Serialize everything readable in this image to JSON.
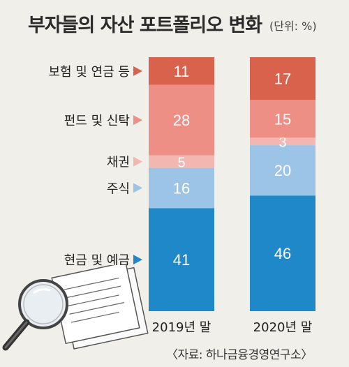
{
  "title": "부자들의 자산 포트폴리오 변화",
  "unit": "(단위: %)",
  "source": "〈자료: 하나금융경영연구소〉",
  "chart_data": {
    "type": "stacked-bar",
    "title": "부자들의 자산 포트폴리오 변화",
    "unit": "%",
    "categories": [
      "2019년 말",
      "2020년 말"
    ],
    "series": [
      {
        "name": "현금 및 예금",
        "values": [
          41,
          46
        ],
        "color": "#1e88c8"
      },
      {
        "name": "주식",
        "values": [
          16,
          20
        ],
        "color": "#9cc4e6"
      },
      {
        "name": "채권",
        "values": [
          5,
          3
        ],
        "color": "#f3b6b1"
      },
      {
        "name": "펀드 및 신탁",
        "values": [
          28,
          15
        ],
        "color": "#ee8f86"
      },
      {
        "name": "보험 및 연금 등",
        "values": [
          11,
          17
        ],
        "color": "#d9624d"
      }
    ]
  }
}
